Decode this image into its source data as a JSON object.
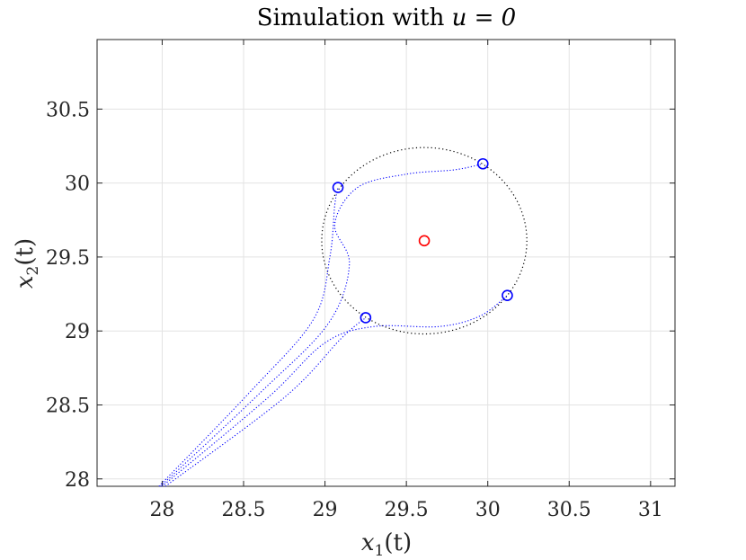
{
  "chart_data": {
    "type": "scatter",
    "title_prefix": "Simulation with ",
    "title_math": "u = 0",
    "xlabel": "x",
    "xlabel_sub": "1",
    "xlabel_arg": "(t)",
    "ylabel": "x",
    "ylabel_sub": "2",
    "ylabel_arg": "(t)",
    "xlim": [
      27.6,
      31.15
    ],
    "ylim": [
      27.95,
      30.97
    ],
    "xticks": [
      "28",
      "28.5",
      "29",
      "29.5",
      "30",
      "30.5",
      "31"
    ],
    "xtick_values": [
      28,
      28.5,
      29,
      29.5,
      30,
      30.5,
      31
    ],
    "yticks": [
      "28",
      "28.5",
      "29",
      "29.5",
      "30",
      "30.5"
    ],
    "ytick_values": [
      28,
      28.5,
      29,
      29.5,
      30,
      30.5
    ],
    "grid": true,
    "circle": {
      "center": [
        29.61,
        29.61
      ],
      "radius": 0.63,
      "color": "#000000",
      "style": "dotted"
    },
    "center_marker": {
      "x": 29.61,
      "y": 29.61,
      "color": "#ff0000"
    },
    "agents": [
      {
        "x": 29.08,
        "y": 29.97
      },
      {
        "x": 29.97,
        "y": 30.13
      },
      {
        "x": 30.12,
        "y": 29.24
      },
      {
        "x": 29.25,
        "y": 29.09
      }
    ],
    "agent_color": "#0000ff",
    "trajectories": [
      [
        [
          27.98,
          27.95
        ],
        [
          28.55,
          28.6
        ],
        [
          28.93,
          29.08
        ],
        [
          29.03,
          29.5
        ],
        [
          29.06,
          29.85
        ],
        [
          29.08,
          29.97
        ]
      ],
      [
        [
          27.99,
          27.95
        ],
        [
          28.6,
          28.58
        ],
        [
          29.02,
          29.05
        ],
        [
          29.15,
          29.45
        ],
        [
          29.06,
          29.72
        ],
        [
          29.2,
          29.97
        ],
        [
          29.5,
          30.06
        ],
        [
          29.8,
          30.09
        ],
        [
          29.97,
          30.13
        ]
      ],
      [
        [
          28.0,
          27.95
        ],
        [
          28.65,
          28.55
        ],
        [
          29.0,
          28.92
        ],
        [
          29.3,
          29.03
        ],
        [
          29.7,
          29.03
        ],
        [
          29.95,
          29.1
        ],
        [
          30.12,
          29.24
        ]
      ],
      [
        [
          28.02,
          27.95
        ],
        [
          28.75,
          28.55
        ],
        [
          29.1,
          28.95
        ],
        [
          29.25,
          29.09
        ]
      ]
    ]
  }
}
